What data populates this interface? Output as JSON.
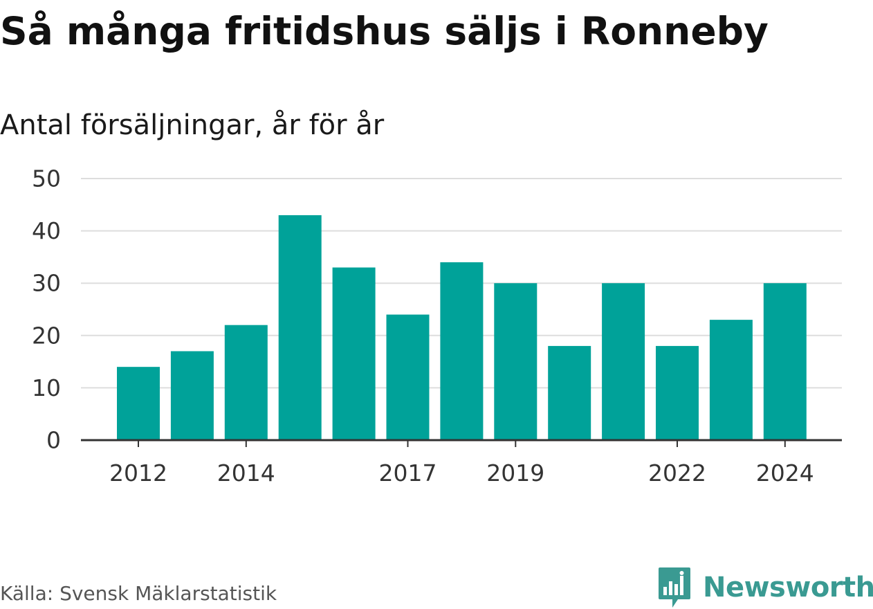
{
  "title": "Så många fritidshus säljs i Ronneby",
  "subtitle": "Antal försäljningar, år för år",
  "source": "Källa: Svensk Mäklarstatistik",
  "logo": {
    "text": "Newsworthy",
    "icon": "newsworthy-logo-icon",
    "color": "#3a9a92"
  },
  "colors": {
    "bar": "#00a299",
    "grid": "#dddddd",
    "axis": "#333333",
    "text": "#1a1a1a"
  },
  "chart_data": {
    "type": "bar",
    "categories": [
      2012,
      2013,
      2014,
      2015,
      2016,
      2017,
      2018,
      2019,
      2020,
      2021,
      2022,
      2023,
      2024
    ],
    "values": [
      14,
      17,
      22,
      43,
      33,
      24,
      34,
      30,
      18,
      30,
      18,
      23,
      30
    ],
    "x_tick_labels": [
      "2012",
      "2014",
      "2017",
      "2019",
      "2022",
      "2024"
    ],
    "y_tick_labels": [
      "0",
      "10",
      "20",
      "30",
      "40",
      "50"
    ],
    "ylim": [
      0,
      50
    ],
    "grid": true,
    "legend": "none",
    "xlabel": "",
    "ylabel": ""
  }
}
